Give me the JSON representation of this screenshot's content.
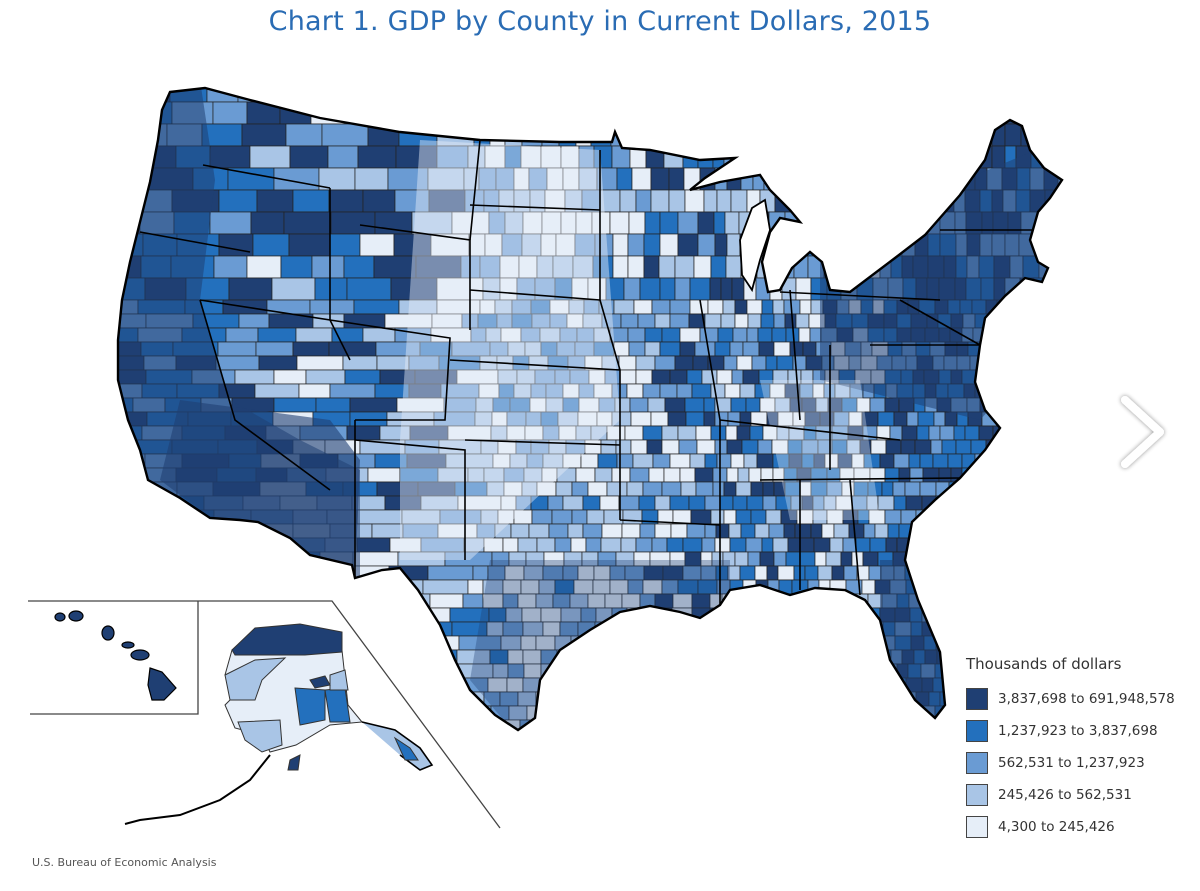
{
  "title": "Chart 1. GDP by County in Current Dollars, 2015",
  "source": "U.S. Bureau of Economic Analysis",
  "legend": {
    "title": "Thousands of dollars",
    "items": [
      {
        "label": "3,837,698 to 691,948,578",
        "color": "#1f3f73"
      },
      {
        "label": "1,237,923 to 3,837,698",
        "color": "#2370bd"
      },
      {
        "label": "562,531 to 1,237,923",
        "color": "#6a9bd3"
      },
      {
        "label": "245,426 to 562,531",
        "color": "#a9c5e6"
      },
      {
        "label": "4,300 to 245,426",
        "color": "#e6eef8"
      }
    ]
  },
  "navigation": {
    "next_icon": "chevron-right-icon"
  },
  "chart_data": {
    "type": "heatmap",
    "subtype": "choropleth-map",
    "title": "Chart 1. GDP by County in Current Dollars, 2015",
    "geography": "United States counties (contiguous US with Alaska and Hawaii insets)",
    "units": "Thousands of dollars",
    "bins": [
      {
        "min": 3837698,
        "max": 691948578,
        "color": "#1f3f73"
      },
      {
        "min": 1237923,
        "max": 3837698,
        "color": "#2370bd"
      },
      {
        "min": 562531,
        "max": 1237923,
        "color": "#6a9bd3"
      },
      {
        "min": 245426,
        "max": 562531,
        "color": "#a9c5e6"
      },
      {
        "min": 4300,
        "max": 245426,
        "color": "#e6eef8"
      }
    ],
    "legend_position": "bottom-right",
    "source": "U.S. Bureau of Economic Analysis"
  }
}
